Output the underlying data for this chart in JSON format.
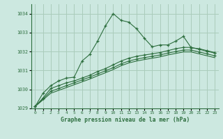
{
  "background_color": "#cce8e0",
  "grid_color": "#aaccbb",
  "line_color": "#2d6e3e",
  "title": "Graphe pression niveau de la mer (hPa)",
  "xlim": [
    -0.5,
    23.5
  ],
  "ylim": [
    1029.0,
    1034.5
  ],
  "yticks": [
    1029,
    1030,
    1031,
    1032,
    1033,
    1034
  ],
  "xticks": [
    0,
    1,
    2,
    3,
    4,
    5,
    6,
    7,
    8,
    9,
    10,
    11,
    12,
    13,
    14,
    15,
    16,
    17,
    18,
    19,
    20,
    21,
    22,
    23
  ],
  "series": [
    {
      "x": [
        0,
        1,
        2,
        3,
        4,
        5,
        6,
        7,
        8,
        9,
        10,
        11,
        12,
        13,
        14,
        15,
        16,
        17,
        18,
        19,
        20,
        21,
        22,
        23
      ],
      "y": [
        1029.1,
        1029.8,
        1030.2,
        1030.45,
        1030.6,
        1030.65,
        1031.5,
        1031.85,
        1032.55,
        1033.35,
        1034.0,
        1033.65,
        1033.55,
        1033.2,
        1032.7,
        1032.25,
        1032.35,
        1032.35,
        1032.55,
        1032.8,
        1032.2,
        1032.15,
        1032.05,
        1031.95
      ],
      "marker": true
    },
    {
      "x": [
        0,
        1,
        2,
        3,
        4,
        5,
        6,
        7,
        8,
        9,
        10,
        11,
        12,
        13,
        14,
        15,
        16,
        17,
        18,
        19,
        20,
        21,
        22,
        23
      ],
      "y": [
        1029.1,
        1029.55,
        1030.05,
        1030.2,
        1030.35,
        1030.45,
        1030.6,
        1030.75,
        1030.95,
        1031.1,
        1031.3,
        1031.5,
        1031.65,
        1031.75,
        1031.82,
        1031.88,
        1031.95,
        1032.05,
        1032.15,
        1032.22,
        1032.22,
        1032.12,
        1032.02,
        1031.92
      ],
      "marker": true
    },
    {
      "x": [
        0,
        1,
        2,
        3,
        4,
        5,
        6,
        7,
        8,
        9,
        10,
        11,
        12,
        13,
        14,
        15,
        16,
        17,
        18,
        19,
        20,
        21,
        22,
        23
      ],
      "y": [
        1029.1,
        1029.5,
        1029.9,
        1030.05,
        1030.2,
        1030.35,
        1030.5,
        1030.65,
        1030.82,
        1030.98,
        1031.15,
        1031.35,
        1031.5,
        1031.6,
        1031.68,
        1031.75,
        1031.82,
        1031.92,
        1032.0,
        1032.08,
        1032.08,
        1031.98,
        1031.88,
        1031.78
      ],
      "marker": true
    },
    {
      "x": [
        0,
        1,
        2,
        3,
        4,
        5,
        6,
        7,
        8,
        9,
        10,
        11,
        12,
        13,
        14,
        15,
        16,
        17,
        18,
        19,
        20,
        21,
        22,
        23
      ],
      "y": [
        1029.1,
        1029.45,
        1029.8,
        1029.95,
        1030.1,
        1030.25,
        1030.4,
        1030.55,
        1030.72,
        1030.88,
        1031.05,
        1031.25,
        1031.4,
        1031.5,
        1031.58,
        1031.65,
        1031.72,
        1031.82,
        1031.9,
        1031.98,
        1031.98,
        1031.88,
        1031.78,
        1031.68
      ],
      "marker": false
    }
  ]
}
